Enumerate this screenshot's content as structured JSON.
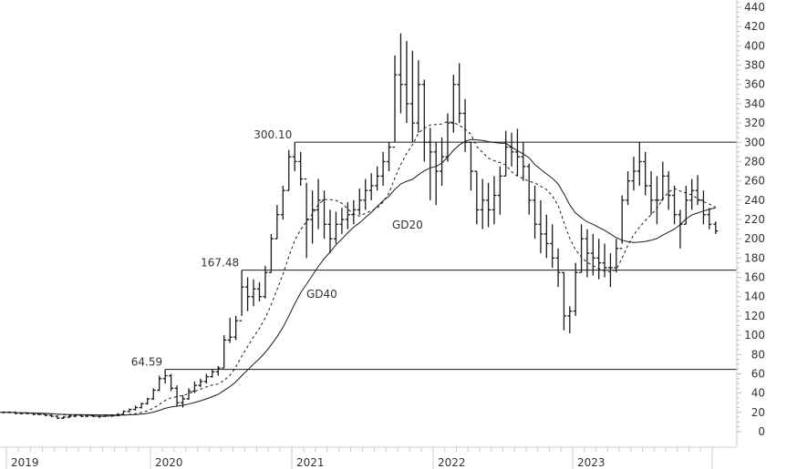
{
  "chart_data": {
    "type": "ohlc",
    "title": "",
    "xlabel": "",
    "ylabel": "",
    "ylim": [
      0,
      440
    ],
    "y_ticks": [
      0,
      20,
      40,
      60,
      80,
      100,
      120,
      140,
      160,
      180,
      200,
      220,
      240,
      260,
      280,
      300,
      320,
      340,
      360,
      380,
      400,
      420,
      440
    ],
    "y_axis_position": "right",
    "x_ticks": [
      "2019",
      "2020",
      "2021",
      "2022",
      "2023"
    ],
    "grid": false,
    "bar_color": "#1a1a1a",
    "levels": [
      {
        "value": 64.59,
        "label": "64.59",
        "from": "2020-02"
      },
      {
        "value": 167.48,
        "label": "167.48",
        "from": "2020-08"
      },
      {
        "value": 300.1,
        "label": "300.10",
        "from": "2021-01"
      }
    ],
    "moving_averages": [
      {
        "name": "GD20",
        "period_weeks": 20,
        "style": "dashed"
      },
      {
        "name": "GD40",
        "period_weeks": 40,
        "style": "solid"
      }
    ],
    "bar_fields": [
      "high",
      "low",
      "close"
    ],
    "months": [
      {
        "month": "2018-12",
        "bars": [
          [
            22,
            19,
            20
          ],
          [
            21,
            19,
            20
          ]
        ]
      },
      {
        "month": "2019-01",
        "bars": [
          [
            21,
            19,
            20
          ],
          [
            21,
            18,
            19
          ]
        ]
      },
      {
        "month": "2019-02",
        "bars": [
          [
            20,
            18,
            19
          ],
          [
            20,
            18,
            19
          ]
        ]
      },
      {
        "month": "2019-03",
        "bars": [
          [
            20,
            17,
            18
          ],
          [
            19,
            17,
            18
          ]
        ]
      },
      {
        "month": "2019-04",
        "bars": [
          [
            19,
            16,
            17
          ],
          [
            18,
            15,
            16
          ]
        ]
      },
      {
        "month": "2019-05",
        "bars": [
          [
            17,
            13,
            14
          ],
          [
            16,
            13,
            15
          ]
        ]
      },
      {
        "month": "2019-06",
        "bars": [
          [
            17,
            14,
            16
          ],
          [
            18,
            15,
            17
          ]
        ]
      },
      {
        "month": "2019-07",
        "bars": [
          [
            18,
            15,
            16
          ],
          [
            18,
            15,
            17
          ]
        ]
      },
      {
        "month": "2019-08",
        "bars": [
          [
            18,
            15,
            16
          ],
          [
            17,
            14,
            16
          ]
        ]
      },
      {
        "month": "2019-09",
        "bars": [
          [
            18,
            15,
            17
          ],
          [
            18,
            15,
            17
          ]
        ]
      },
      {
        "month": "2019-10",
        "bars": [
          [
            19,
            16,
            18
          ],
          [
            22,
            17,
            21
          ]
        ]
      },
      {
        "month": "2019-11",
        "bars": [
          [
            24,
            20,
            23
          ],
          [
            27,
            22,
            25
          ]
        ]
      },
      {
        "month": "2019-12",
        "bars": [
          [
            30,
            24,
            29
          ],
          [
            35,
            28,
            34
          ]
        ]
      },
      {
        "month": "2020-01",
        "bars": [
          [
            45,
            33,
            43
          ],
          [
            58,
            42,
            55
          ]
        ]
      },
      {
        "month": "2020-02",
        "bars": [
          [
            64.59,
            50,
            58
          ],
          [
            60,
            42,
            45
          ]
        ]
      },
      {
        "month": "2020-03",
        "bars": [
          [
            48,
            26,
            30
          ],
          [
            38,
            25,
            34
          ]
        ]
      },
      {
        "month": "2020-04",
        "bars": [
          [
            45,
            33,
            42
          ],
          [
            52,
            40,
            48
          ]
        ]
      },
      {
        "month": "2020-05",
        "bars": [
          [
            55,
            46,
            52
          ],
          [
            60,
            50,
            57
          ]
        ]
      },
      {
        "month": "2020-06",
        "bars": [
          [
            65,
            56,
            62
          ],
          [
            68,
            58,
            66
          ]
        ]
      },
      {
        "month": "2020-07",
        "bars": [
          [
            100,
            66,
            95
          ],
          [
            118,
            92,
            98
          ]
        ]
      },
      {
        "month": "2020-08",
        "bars": [
          [
            120,
            95,
            115
          ],
          [
            167.48,
            120,
            150
          ]
        ]
      },
      {
        "month": "2020-09",
        "bars": [
          [
            160,
            125,
            140
          ],
          [
            158,
            130,
            148
          ]
        ]
      },
      {
        "month": "2020-10",
        "bars": [
          [
            155,
            135,
            140
          ],
          [
            172,
            138,
            165
          ]
        ]
      },
      {
        "month": "2020-11",
        "bars": [
          [
            205,
            165,
            200
          ],
          [
            235,
            200,
            225
          ]
        ]
      },
      {
        "month": "2020-12",
        "bars": [
          [
            255,
            220,
            250
          ],
          [
            292,
            250,
            285
          ]
        ]
      },
      {
        "month": "2021-01",
        "bars": [
          [
            300.1,
            270,
            280
          ],
          [
            290,
            255,
            262
          ]
        ]
      },
      {
        "month": "2021-02",
        "bars": [
          [
            258,
            180,
            220
          ],
          [
            250,
            195,
            230
          ]
        ]
      },
      {
        "month": "2021-03",
        "bars": [
          [
            262,
            210,
            240
          ],
          [
            250,
            200,
            215
          ]
        ]
      },
      {
        "month": "2021-04",
        "bars": [
          [
            230,
            185,
            200
          ],
          [
            228,
            195,
            215
          ]
        ]
      },
      {
        "month": "2021-05",
        "bars": [
          [
            232,
            205,
            220
          ],
          [
            238,
            210,
            225
          ]
        ]
      },
      {
        "month": "2021-06",
        "bars": [
          [
            240,
            215,
            230
          ],
          [
            252,
            225,
            240
          ]
        ]
      },
      {
        "month": "2021-07",
        "bars": [
          [
            262,
            230,
            250
          ],
          [
            268,
            240,
            255
          ]
        ]
      },
      {
        "month": "2021-08",
        "bars": [
          [
            275,
            250,
            265
          ],
          [
            290,
            255,
            280
          ]
        ]
      },
      {
        "month": "2021-09",
        "bars": [
          [
            300,
            270,
            295
          ],
          [
            390,
            300,
            370
          ]
        ]
      },
      {
        "month": "2021-10",
        "bars": [
          [
            413,
            330,
            360
          ],
          [
            405,
            320,
            340
          ]
        ]
      },
      {
        "month": "2021-11",
        "bars": [
          [
            395,
            300,
            320
          ],
          [
            385,
            310,
            360
          ]
        ]
      },
      {
        "month": "2021-12",
        "bars": [
          [
            365,
            280,
            300
          ],
          [
            315,
            240,
            290
          ]
        ]
      },
      {
        "month": "2022-01",
        "bars": [
          [
            300,
            235,
            270
          ],
          [
            305,
            255,
            285
          ]
        ]
      },
      {
        "month": "2022-02",
        "bars": [
          [
            330,
            280,
            320
          ],
          [
            370,
            310,
            360
          ]
        ]
      },
      {
        "month": "2022-03",
        "bars": [
          [
            382,
            320,
            330
          ],
          [
            345,
            290,
            300
          ]
        ]
      },
      {
        "month": "2022-04",
        "bars": [
          [
            300,
            250,
            270
          ],
          [
            270,
            215,
            230
          ]
        ]
      },
      {
        "month": "2022-05",
        "bars": [
          [
            262,
            210,
            240
          ],
          [
            258,
            212,
            230
          ]
        ]
      },
      {
        "month": "2022-06",
        "bars": [
          [
            265,
            215,
            245
          ],
          [
            275,
            225,
            265
          ]
        ]
      },
      {
        "month": "2022-07",
        "bars": [
          [
            312,
            265,
            295
          ],
          [
            310,
            275,
            290
          ]
        ]
      },
      {
        "month": "2022-08",
        "bars": [
          [
            314,
            265,
            285
          ],
          [
            300,
            260,
            275
          ]
        ]
      },
      {
        "month": "2022-09",
        "bars": [
          [
            278,
            225,
            240
          ],
          [
            255,
            200,
            215
          ]
        ]
      },
      {
        "month": "2022-10",
        "bars": [
          [
            240,
            185,
            205
          ],
          [
            225,
            180,
            195
          ]
        ]
      },
      {
        "month": "2022-11",
        "bars": [
          [
            215,
            170,
            180
          ],
          [
            190,
            150,
            165
          ]
        ]
      },
      {
        "month": "2022-12",
        "bars": [
          [
            165,
            105,
            120
          ],
          [
            130,
            102,
            125
          ]
        ]
      },
      {
        "month": "2023-01",
        "bars": [
          [
            175,
            120,
            165
          ],
          [
            215,
            165,
            200
          ]
        ]
      },
      {
        "month": "2023-02",
        "bars": [
          [
            210,
            160,
            185
          ],
          [
            205,
            162,
            180
          ]
        ]
      },
      {
        "month": "2023-03",
        "bars": [
          [
            200,
            158,
            175
          ],
          [
            195,
            160,
            170
          ]
        ]
      },
      {
        "month": "2023-04",
        "bars": [
          [
            185,
            150,
            170
          ],
          [
            200,
            165,
            190
          ]
        ]
      },
      {
        "month": "2023-05",
        "bars": [
          [
            245,
            195,
            240
          ],
          [
            270,
            235,
            260
          ]
        ]
      },
      {
        "month": "2023-06",
        "bars": [
          [
            285,
            250,
            270
          ],
          [
            300,
            255,
            280
          ]
        ]
      },
      {
        "month": "2023-07",
        "bars": [
          [
            290,
            245,
            255
          ],
          [
            270,
            225,
            240
          ]
        ]
      },
      {
        "month": "2023-08",
        "bars": [
          [
            265,
            215,
            240
          ],
          [
            280,
            240,
            265
          ]
        ]
      },
      {
        "month": "2023-09",
        "bars": [
          [
            270,
            230,
            245
          ],
          [
            255,
            215,
            225
          ]
        ]
      },
      {
        "month": "2023-10",
        "bars": [
          [
            230,
            190,
            215
          ],
          [
            255,
            215,
            240
          ]
        ]
      },
      {
        "month": "2023-11",
        "bars": [
          [
            262,
            230,
            250
          ],
          [
            266,
            235,
            240
          ]
        ]
      },
      {
        "month": "2023-12",
        "bars": [
          [
            250,
            215,
            225
          ],
          [
            232,
            210,
            215
          ]
        ]
      },
      {
        "month": "2024-01",
        "bars": [
          [
            218,
            205,
            208
          ]
        ]
      }
    ]
  }
}
